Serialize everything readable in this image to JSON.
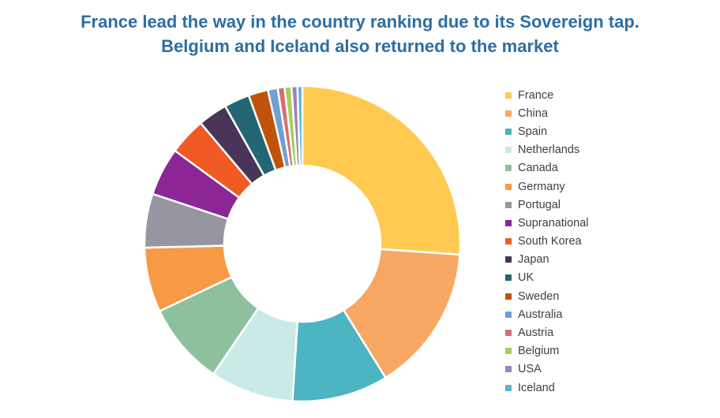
{
  "title": {
    "line1": "France lead the way in the country ranking due to its Sovereign tap.",
    "line2": "Belgium and Iceland also returned to the market"
  },
  "chart_data": {
    "type": "pie",
    "donut": true,
    "title": "France lead the way in the country ranking due to its Sovereign tap. Belgium and Iceland also returned to the market",
    "legend_position": "right",
    "values_unit": "percent (estimated)",
    "series": [
      {
        "name": "France",
        "value": 26.0,
        "color": "#FFCA4F"
      },
      {
        "name": "China",
        "value": 15.0,
        "color": "#F8A862"
      },
      {
        "name": "Spain",
        "value": 9.8,
        "color": "#4BB5C1"
      },
      {
        "name": "Netherlands",
        "value": 8.5,
        "color": "#C9EAE6"
      },
      {
        "name": "Canada",
        "value": 8.4,
        "color": "#8DC19E"
      },
      {
        "name": "Germany",
        "value": 6.6,
        "color": "#F79A46"
      },
      {
        "name": "Portugal",
        "value": 5.5,
        "color": "#9696A0"
      },
      {
        "name": "Supranational",
        "value": 4.9,
        "color": "#8C2595"
      },
      {
        "name": "South Korea",
        "value": 3.8,
        "color": "#F15A24"
      },
      {
        "name": "Japan",
        "value": 3.0,
        "color": "#483558"
      },
      {
        "name": "UK",
        "value": 2.6,
        "color": "#246774"
      },
      {
        "name": "Sweden",
        "value": 2.0,
        "color": "#C0530B"
      },
      {
        "name": "Australia",
        "value": 1.0,
        "color": "#709FD4"
      },
      {
        "name": "Austria",
        "value": 0.7,
        "color": "#D4706F"
      },
      {
        "name": "Belgium",
        "value": 0.7,
        "color": "#A6CE5A"
      },
      {
        "name": "USA",
        "value": 0.6,
        "color": "#9C84BC"
      },
      {
        "name": "Iceland",
        "value": 0.5,
        "color": "#5BB3CF"
      }
    ]
  }
}
